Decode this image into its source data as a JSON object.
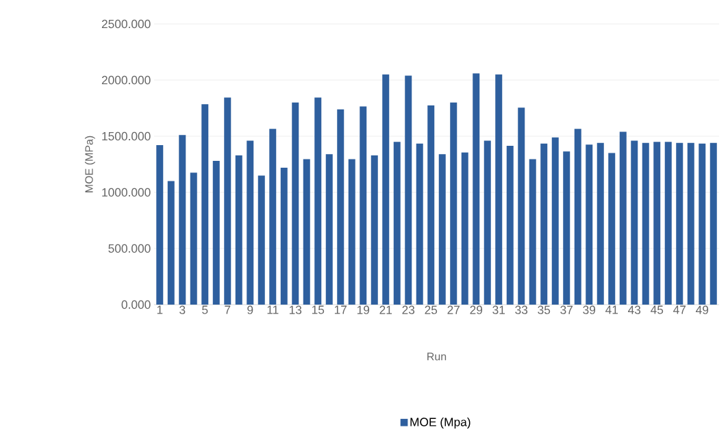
{
  "chart_data": {
    "type": "bar",
    "xlabel": "Run",
    "ylabel": "MOE (MPa)",
    "categories": [
      "1",
      null,
      "3",
      null,
      "5",
      null,
      "7",
      null,
      "9",
      null,
      "11",
      null,
      "13",
      null,
      "15",
      null,
      "17",
      null,
      "19",
      null,
      "21",
      null,
      "23",
      null,
      "25",
      null,
      "27",
      null,
      "29",
      null,
      "31",
      null,
      "33",
      null,
      "35",
      null,
      "37",
      null,
      "39",
      null,
      "41",
      null,
      "43",
      null,
      "45",
      null,
      "47",
      null,
      "49",
      null
    ],
    "series": [
      {
        "name": "MOE (Mpa)",
        "color": "#2e5f9e",
        "values": [
          1420,
          1100,
          1510,
          1175,
          1785,
          1280,
          1845,
          1330,
          1460,
          1150,
          1565,
          1220,
          1800,
          1295,
          1845,
          1340,
          1740,
          1295,
          1765,
          1330,
          2050,
          1450,
          2040,
          1435,
          1775,
          1340,
          1800,
          1355,
          2060,
          1460,
          2050,
          1415,
          1755,
          1295,
          1435,
          1490,
          1365,
          1565,
          1425,
          1440,
          1350,
          1540,
          1460,
          1440,
          1450,
          1450,
          1440,
          1440,
          1435,
          1440
        ]
      }
    ],
    "ylim": [
      0,
      2500
    ],
    "yticks": [
      {
        "value": 0,
        "label": "0.000"
      },
      {
        "value": 500,
        "label": "500.000"
      },
      {
        "value": 1000,
        "label": "1000.000"
      },
      {
        "value": 1500,
        "label": "1500.000"
      },
      {
        "value": 2000,
        "label": "2000.000"
      },
      {
        "value": 2500,
        "label": "2500.000"
      }
    ],
    "grid": "y",
    "legend": "bottom"
  }
}
